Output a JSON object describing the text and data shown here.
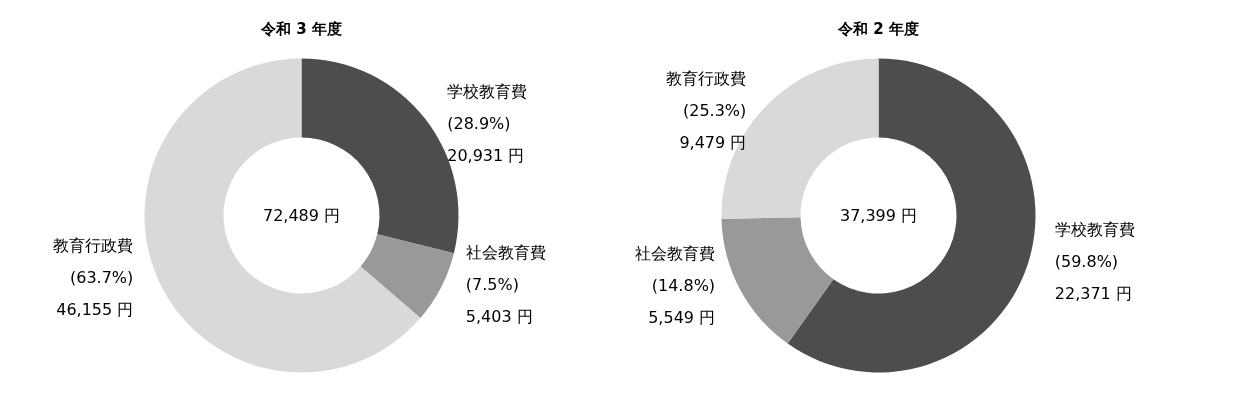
{
  "chart_data": [
    {
      "type": "donut",
      "title": "令和 3 年度",
      "categories": [
        "学校教育費",
        "社会教育費",
        "教育行政費"
      ],
      "values": [
        20931,
        5403,
        46155
      ],
      "colors": [
        "#4d4d4d",
        "#999999",
        "#d9d9d9"
      ],
      "value_labels": [
        "(28.9%)\n20,931 円",
        "(7.5%)\n5,403 円",
        "(63.7%)\n46,155 円"
      ],
      "annotations": [
        "72,489 円"
      ]
    },
    {
      "type": "donut",
      "title": "令和 2 年度",
      "categories": [
        "学校教育費",
        "社会教育費",
        "教育行政費"
      ],
      "values": [
        22371,
        5549,
        9479
      ],
      "colors": [
        "#4d4d4d",
        "#999999",
        "#d9d9d9"
      ],
      "value_labels": [
        "(59.8%)\n22,371 円",
        "(14.8%)\n5,549 円",
        "(25.3%)\n9,479 円"
      ],
      "annotations": [
        "37,399 円"
      ]
    }
  ]
}
